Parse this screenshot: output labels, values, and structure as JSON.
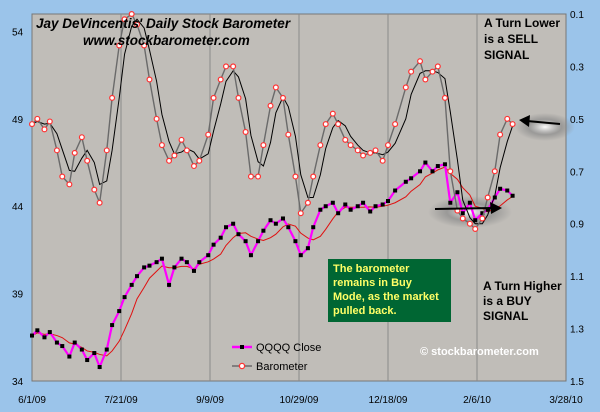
{
  "chart_data": {
    "type": "line",
    "title": "Jay DeVincentis' Daily Stock Barometer",
    "subtitle": "www.stockbarometer.com",
    "x_ticks": [
      "6/1/09",
      "7/21/09",
      "9/9/09",
      "10/29/09",
      "12/18/09",
      "2/6/10",
      "3/28/10"
    ],
    "x_range": [
      "2009-06-01",
      "2010-03-28"
    ],
    "y_left": {
      "ticks": [
        34,
        39,
        44,
        49,
        54
      ],
      "range": [
        34,
        55
      ]
    },
    "y_right": {
      "ticks": [
        0.1,
        0.3,
        0.5,
        0.7,
        0.9,
        1.1,
        1.3,
        1.5
      ],
      "range": [
        0.1,
        1.5
      ],
      "inverted": true
    },
    "grid": true,
    "legend_position": "bottom-center",
    "series": [
      {
        "name": "QQQQ Close",
        "axis": "left",
        "color": "#ff00ff",
        "marker_color": "#000000",
        "points": [
          [
            "2009-06-01",
            36.6
          ],
          [
            "2009-06-04",
            36.9
          ],
          [
            "2009-06-08",
            36.5
          ],
          [
            "2009-06-11",
            36.8
          ],
          [
            "2009-06-15",
            36.2
          ],
          [
            "2009-06-18",
            36.0
          ],
          [
            "2009-06-22",
            35.4
          ],
          [
            "2009-06-25",
            36.2
          ],
          [
            "2009-06-29",
            35.8
          ],
          [
            "2009-07-02",
            35.2
          ],
          [
            "2009-07-06",
            35.6
          ],
          [
            "2009-07-09",
            34.8
          ],
          [
            "2009-07-13",
            35.8
          ],
          [
            "2009-07-16",
            37.2
          ],
          [
            "2009-07-20",
            38.0
          ],
          [
            "2009-07-23",
            38.8
          ],
          [
            "2009-07-27",
            39.5
          ],
          [
            "2009-07-30",
            40.0
          ],
          [
            "2009-08-03",
            40.5
          ],
          [
            "2009-08-06",
            40.6
          ],
          [
            "2009-08-10",
            40.8
          ],
          [
            "2009-08-13",
            41.0
          ],
          [
            "2009-08-17",
            39.5
          ],
          [
            "2009-08-20",
            40.5
          ],
          [
            "2009-08-24",
            41.0
          ],
          [
            "2009-08-27",
            40.8
          ],
          [
            "2009-08-31",
            40.3
          ],
          [
            "2009-09-03",
            40.8
          ],
          [
            "2009-09-08",
            41.2
          ],
          [
            "2009-09-11",
            41.8
          ],
          [
            "2009-09-15",
            42.2
          ],
          [
            "2009-09-18",
            42.8
          ],
          [
            "2009-09-22",
            43.0
          ],
          [
            "2009-09-25",
            42.4
          ],
          [
            "2009-09-29",
            42.0
          ],
          [
            "2009-10-02",
            41.2
          ],
          [
            "2009-10-06",
            42.0
          ],
          [
            "2009-10-09",
            42.6
          ],
          [
            "2009-10-13",
            43.2
          ],
          [
            "2009-10-16",
            43.0
          ],
          [
            "2009-10-20",
            43.3
          ],
          [
            "2009-10-23",
            42.8
          ],
          [
            "2009-10-27",
            42.0
          ],
          [
            "2009-10-30",
            41.2
          ],
          [
            "2009-11-03",
            41.6
          ],
          [
            "2009-11-06",
            42.8
          ],
          [
            "2009-11-10",
            43.8
          ],
          [
            "2009-11-13",
            44.0
          ],
          [
            "2009-11-17",
            44.2
          ],
          [
            "2009-11-20",
            43.6
          ],
          [
            "2009-11-24",
            44.1
          ],
          [
            "2009-11-27",
            43.8
          ],
          [
            "2009-12-01",
            44.0
          ],
          [
            "2009-12-04",
            44.2
          ],
          [
            "2009-12-08",
            43.7
          ],
          [
            "2009-12-11",
            44.0
          ],
          [
            "2009-12-15",
            44.1
          ],
          [
            "2009-12-18",
            44.3
          ],
          [
            "2009-12-22",
            44.9
          ],
          [
            "2009-12-28",
            45.4
          ],
          [
            "2009-12-31",
            45.6
          ],
          [
            "2010-01-05",
            46.0
          ],
          [
            "2010-01-08",
            46.5
          ],
          [
            "2010-01-12",
            46.0
          ],
          [
            "2010-01-15",
            46.3
          ],
          [
            "2010-01-19",
            46.4
          ],
          [
            "2010-01-22",
            44.2
          ],
          [
            "2010-01-26",
            44.8
          ],
          [
            "2010-01-29",
            43.6
          ],
          [
            "2010-02-02",
            44.2
          ],
          [
            "2010-02-05",
            43.2
          ],
          [
            "2010-02-09",
            43.6
          ],
          [
            "2010-02-12",
            43.8
          ],
          [
            "2010-02-16",
            44.5
          ],
          [
            "2010-02-19",
            45.0
          ],
          [
            "2010-02-23",
            44.9
          ],
          [
            "2010-02-26",
            44.6
          ]
        ]
      },
      {
        "name": "Barometer",
        "axis": "right",
        "color": "#6a6a6a",
        "marker_color": "#ff3333",
        "points": [
          [
            "2009-06-01",
            0.52
          ],
          [
            "2009-06-04",
            0.5
          ],
          [
            "2009-06-08",
            0.54
          ],
          [
            "2009-06-11",
            0.51
          ],
          [
            "2009-06-15",
            0.62
          ],
          [
            "2009-06-18",
            0.72
          ],
          [
            "2009-06-22",
            0.75
          ],
          [
            "2009-06-25",
            0.63
          ],
          [
            "2009-06-29",
            0.57
          ],
          [
            "2009-07-02",
            0.66
          ],
          [
            "2009-07-06",
            0.77
          ],
          [
            "2009-07-09",
            0.82
          ],
          [
            "2009-07-13",
            0.62
          ],
          [
            "2009-07-16",
            0.42
          ],
          [
            "2009-07-20",
            0.22
          ],
          [
            "2009-07-23",
            0.12
          ],
          [
            "2009-07-27",
            0.1
          ],
          [
            "2009-07-30",
            0.14
          ],
          [
            "2009-08-03",
            0.22
          ],
          [
            "2009-08-06",
            0.35
          ],
          [
            "2009-08-10",
            0.5
          ],
          [
            "2009-08-13",
            0.6
          ],
          [
            "2009-08-17",
            0.66
          ],
          [
            "2009-08-20",
            0.64
          ],
          [
            "2009-08-24",
            0.58
          ],
          [
            "2009-08-27",
            0.62
          ],
          [
            "2009-08-31",
            0.68
          ],
          [
            "2009-09-03",
            0.66
          ],
          [
            "2009-09-08",
            0.56
          ],
          [
            "2009-09-11",
            0.42
          ],
          [
            "2009-09-15",
            0.35
          ],
          [
            "2009-09-18",
            0.3
          ],
          [
            "2009-09-22",
            0.3
          ],
          [
            "2009-09-25",
            0.42
          ],
          [
            "2009-09-29",
            0.55
          ],
          [
            "2009-10-02",
            0.72
          ],
          [
            "2009-10-06",
            0.72
          ],
          [
            "2009-10-09",
            0.6
          ],
          [
            "2009-10-13",
            0.45
          ],
          [
            "2009-10-16",
            0.38
          ],
          [
            "2009-10-20",
            0.42
          ],
          [
            "2009-10-23",
            0.56
          ],
          [
            "2009-10-27",
            0.72
          ],
          [
            "2009-10-30",
            0.86
          ],
          [
            "2009-11-03",
            0.82
          ],
          [
            "2009-11-06",
            0.72
          ],
          [
            "2009-11-10",
            0.6
          ],
          [
            "2009-11-13",
            0.52
          ],
          [
            "2009-11-17",
            0.48
          ],
          [
            "2009-11-20",
            0.52
          ],
          [
            "2009-11-24",
            0.58
          ],
          [
            "2009-11-27",
            0.6
          ],
          [
            "2009-12-01",
            0.62
          ],
          [
            "2009-12-04",
            0.64
          ],
          [
            "2009-12-08",
            0.63
          ],
          [
            "2009-12-11",
            0.62
          ],
          [
            "2009-12-15",
            0.66
          ],
          [
            "2009-12-18",
            0.6
          ],
          [
            "2009-12-22",
            0.52
          ],
          [
            "2009-12-28",
            0.38
          ],
          [
            "2009-12-31",
            0.32
          ],
          [
            "2010-01-05",
            0.28
          ],
          [
            "2010-01-08",
            0.35
          ],
          [
            "2010-01-12",
            0.32
          ],
          [
            "2010-01-15",
            0.3
          ],
          [
            "2010-01-19",
            0.42
          ],
          [
            "2010-01-22",
            0.7
          ],
          [
            "2010-01-26",
            0.85
          ],
          [
            "2010-01-29",
            0.88
          ],
          [
            "2010-02-02",
            0.9
          ],
          [
            "2010-02-05",
            0.92
          ],
          [
            "2010-02-09",
            0.88
          ],
          [
            "2010-02-12",
            0.8
          ],
          [
            "2010-02-16",
            0.7
          ],
          [
            "2010-02-19",
            0.56
          ],
          [
            "2010-02-23",
            0.5
          ],
          [
            "2010-02-26",
            0.52
          ]
        ]
      }
    ],
    "annotations": {
      "sell_line1": "A Turn Lower",
      "sell_line2": "is a SELL",
      "sell_line3": "SIGNAL",
      "buy_line1": "A Turn Higher",
      "buy_line2": "is a BUY",
      "buy_line3": "SIGNAL",
      "note_lines": [
        "The barometer",
        "remains in Buy",
        "Mode, as the market",
        "pulled back."
      ],
      "watermark": "© stockbarometer.com"
    },
    "colors": {
      "plot_bg": "#c0bdb8",
      "frame": "#9bc4ea",
      "note_bg": "#006633",
      "note_text": "#ffff66"
    }
  }
}
